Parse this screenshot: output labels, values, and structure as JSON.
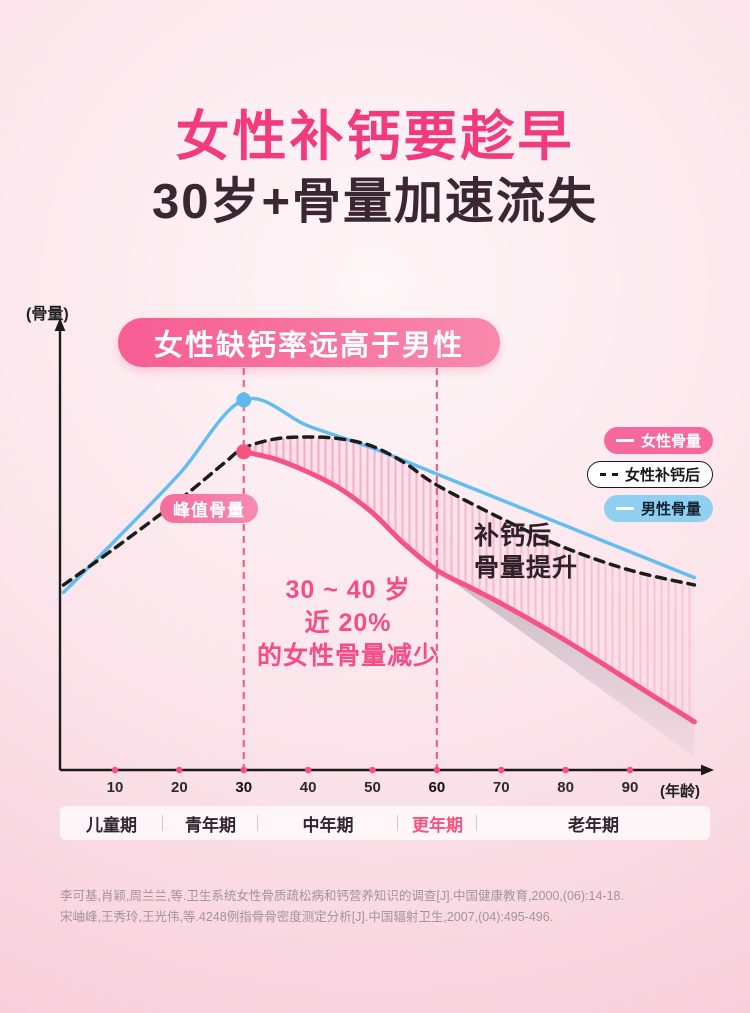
{
  "header": {
    "title": "女性补钙要趁早",
    "subtitle": "30岁+骨量加速流失"
  },
  "chart_labels": {
    "banner": "女性缺钙率远高于男性",
    "y_axis": "(骨量)",
    "x_axis": "(年龄)",
    "peak_badge": "峰值骨量"
  },
  "annotations": {
    "loss": [
      "30 ~ 40 岁",
      "近 20%",
      "的女性骨量减少"
    ],
    "gain": [
      "补钙后",
      "骨量提升"
    ]
  },
  "legend": [
    {
      "label": "女性骨量",
      "bg": "#F7699C",
      "text_color": "#FFFFFF",
      "line": "solid",
      "line_color": "#FFFFFF"
    },
    {
      "label": "女性补钙后",
      "bg": "#FFFFFF",
      "text_color": "#1A1A1A",
      "line": "dashed",
      "line_color": "#1A1A1A",
      "border": "#1A1A1A"
    },
    {
      "label": "男性骨量",
      "bg": "#8FD0F2",
      "text_color": "#122430",
      "line": "solid",
      "line_color": "#FFFFFF"
    }
  ],
  "periods": [
    {
      "label": "儿童期",
      "highlight": false
    },
    {
      "label": "青年期",
      "highlight": false
    },
    {
      "label": "中年期",
      "highlight": false
    },
    {
      "label": "更年期",
      "highlight": true
    },
    {
      "label": "老年期",
      "highlight": false
    }
  ],
  "references": [
    "李可基,肖颖,周兰兰,等.卫生系统女性骨质疏松病和钙营养知识的调查[J].中国健康教育,2000,(06):14-18.",
    "宋岫峰,王秀玲,王光伟,等.4248例指骨骨密度测定分析[J].中国辐射卫生,2007,(04):495-496."
  ],
  "colors": {
    "accent_pink": "#F4547E",
    "title_pink": "#F23A7E",
    "dark_text": "#3C2630",
    "male_blue": "#63BDF0",
    "female_pink": "#F75287",
    "supplement_black": "#1C1C1C"
  },
  "chart_data": {
    "type": "line",
    "title": "女性缺钙率远高于男性",
    "xlabel": "年龄",
    "ylabel": "骨量",
    "x_range": [
      0,
      100
    ],
    "y_range": [
      0,
      110
    ],
    "x_ticks": [
      10,
      20,
      30,
      40,
      50,
      60,
      70,
      80,
      90
    ],
    "emphasis_ticks": [
      30,
      60
    ],
    "vlines": [
      30,
      60
    ],
    "legend_position": "right",
    "grid": false,
    "series": [
      {
        "name": "男性骨量",
        "color": "#63BDF0",
        "style": "solid",
        "points": [
          [
            2,
            48
          ],
          [
            10,
            62
          ],
          [
            20,
            80
          ],
          [
            30,
            100
          ],
          [
            40,
            93
          ],
          [
            50,
            87
          ],
          [
            60,
            80
          ],
          [
            70,
            73
          ],
          [
            80,
            66
          ],
          [
            90,
            59
          ],
          [
            100,
            52
          ]
        ]
      },
      {
        "name": "女性补钙后",
        "color": "#1C1C1C",
        "style": "dashed",
        "points": [
          [
            2,
            50
          ],
          [
            10,
            60
          ],
          [
            20,
            73
          ],
          [
            27,
            83
          ],
          [
            30,
            87
          ],
          [
            35,
            89.5
          ],
          [
            40,
            90
          ],
          [
            45,
            89.5
          ],
          [
            50,
            87.5
          ],
          [
            55,
            83
          ],
          [
            60,
            77
          ],
          [
            70,
            68
          ],
          [
            80,
            60
          ],
          [
            90,
            54
          ],
          [
            100,
            50
          ]
        ]
      },
      {
        "name": "女性骨量",
        "color": "#F75287",
        "style": "solid",
        "points": [
          [
            30,
            86
          ],
          [
            35,
            84
          ],
          [
            40,
            80.5
          ],
          [
            45,
            76
          ],
          [
            50,
            69.5
          ],
          [
            55,
            61
          ],
          [
            60,
            54
          ],
          [
            65,
            49.5
          ],
          [
            70,
            45
          ],
          [
            80,
            35
          ],
          [
            90,
            24
          ],
          [
            100,
            13
          ]
        ]
      }
    ],
    "markers": [
      {
        "x": 30,
        "y": 100,
        "color": "#5FB9EE"
      },
      {
        "x": 30,
        "y": 86,
        "color": "#F4547E"
      }
    ],
    "gain_band": {
      "upper": "女性补钙后",
      "lower": "女性骨量",
      "from_x": 30
    },
    "decline_shadow": {
      "series": "女性骨量",
      "from_x": 60
    }
  }
}
